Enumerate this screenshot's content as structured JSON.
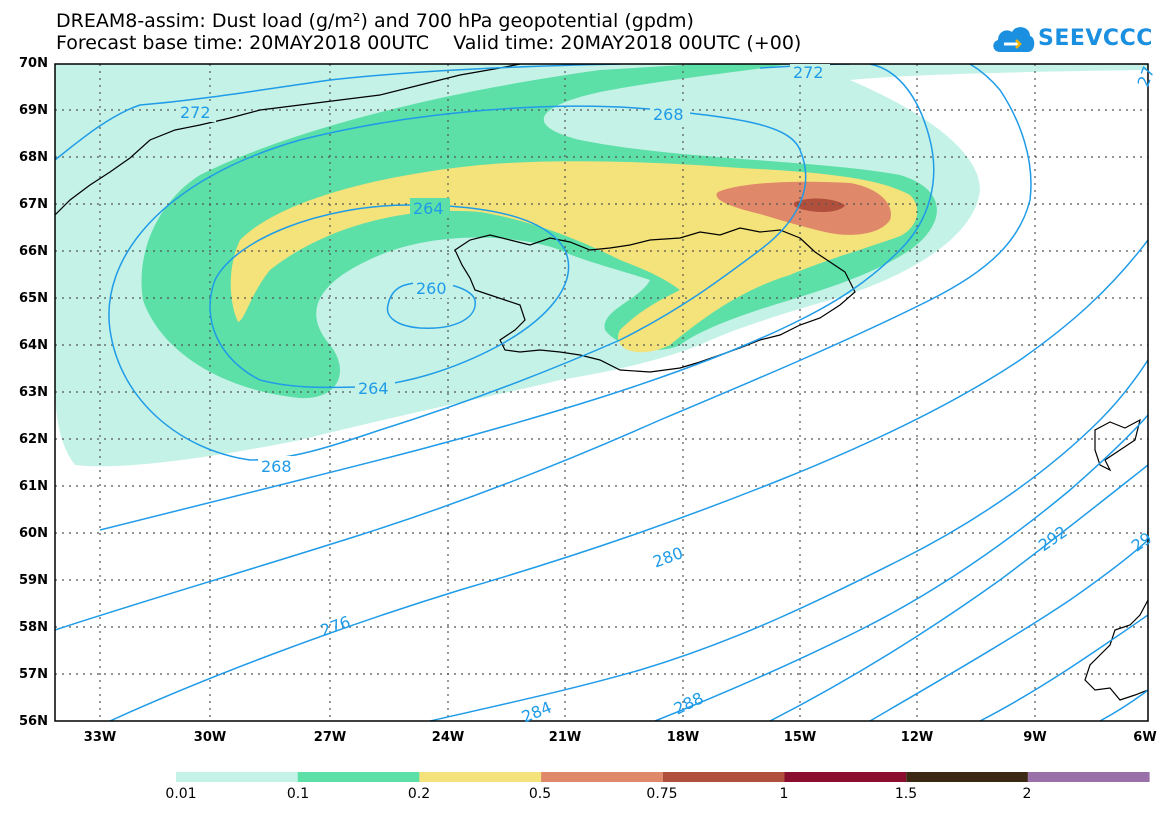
{
  "title": {
    "line1": "DREAM8-assim: Dust load (g/m²) and 700 hPa geopotential (gpdm)",
    "line2": "Forecast base time: 20MAY2018 00UTC    Valid time: 20MAY2018 00UTC (+00)"
  },
  "logo": {
    "text": "SEEVCCC",
    "icon": "cloud-logo-icon"
  },
  "map": {
    "lat_labels": [
      "70N",
      "69N",
      "68N",
      "67N",
      "66N",
      "65N",
      "64N",
      "63N",
      "62N",
      "61N",
      "60N",
      "59N",
      "58N",
      "57N",
      "56N"
    ],
    "lon_labels": [
      "33W",
      "30W",
      "27W",
      "24W",
      "21W",
      "18W",
      "15W",
      "12W",
      "9W",
      "6W"
    ],
    "contour_labels": [
      "272",
      "268",
      "272",
      "264",
      "260",
      "264",
      "268",
      "276",
      "280",
      "284",
      "288",
      "292",
      "29",
      "27"
    ],
    "colors": {
      "level_0.01": "#c4f2e6",
      "level_0.1": "#5ddfa8",
      "level_0.2": "#f4e27a",
      "level_0.5": "#e0886a",
      "level_0.75": "#b0503c",
      "contour": "#1f9be8",
      "coast": "#000000"
    }
  },
  "colorbar": {
    "labels": [
      "0.01",
      "0.1",
      "0.2",
      "0.5",
      "0.75",
      "1",
      "1.5",
      "2"
    ],
    "colors": [
      "#c4f2e6",
      "#5ddfa8",
      "#f4e27a",
      "#e0886a",
      "#b0503c",
      "#8a0f2e",
      "#3b2914",
      "#9a70a8"
    ]
  }
}
